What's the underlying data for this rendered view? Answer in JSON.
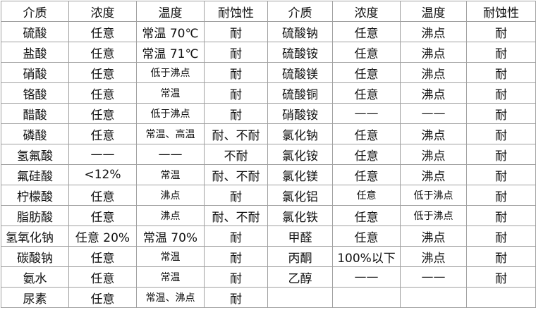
{
  "table": {
    "header": [
      "介质",
      "浓度",
      "温度",
      "耐蚀性",
      "介质",
      "浓度",
      "温度",
      "耐蚀性"
    ],
    "rows": [
      [
        "硫酸",
        "任意",
        "常温 70℃",
        "耐",
        "硫酸钠",
        "任意",
        "沸点",
        "耐"
      ],
      [
        "盐酸",
        "任意",
        "常温 71℃",
        "耐",
        "硫酸铵",
        "任意",
        "沸点",
        "耐"
      ],
      [
        "硝酸",
        "任意",
        "低于沸点",
        "耐",
        "硫酸镁",
        "任意",
        "沸点",
        "耐"
      ],
      [
        "铬酸",
        "任意",
        "常温",
        "耐",
        "硫酸铜",
        "任意",
        "沸点",
        "耐"
      ],
      [
        "醋酸",
        "任意",
        "低于沸点",
        "耐",
        "硝酸铵",
        "——",
        "——",
        "耐"
      ],
      [
        "磷酸",
        "任意",
        "常温、高温",
        "耐、不耐",
        "氯化钠",
        "任意",
        "沸点",
        "耐"
      ],
      [
        "氢氟酸",
        "——",
        "——",
        "不耐",
        "氯化铵",
        "任意",
        "沸点",
        "耐"
      ],
      [
        "氟硅酸",
        "<12%",
        "常温",
        "耐、不耐",
        "氯化镁",
        "任意",
        "沸点",
        "耐"
      ],
      [
        "柠檬酸",
        "任意",
        "沸点",
        "耐",
        "氯化铝",
        "任意",
        "低于沸点",
        "耐"
      ],
      [
        "脂肪酸",
        "任意",
        "沸点",
        "耐、不耐",
        "氯化铁",
        "任意",
        "低于沸点",
        "耐"
      ],
      [
        "氢氧化钠",
        "任意 20%",
        "常温 70%",
        "耐",
        "甲醛",
        "任意",
        "沸点",
        "耐"
      ],
      [
        "碳酸钠",
        "任意",
        "常温",
        "耐",
        "丙酮",
        "100%以下",
        "沸点",
        "耐"
      ],
      [
        "氨水",
        "任意",
        "常温",
        "耐",
        "乙醇",
        "——",
        "——",
        "耐"
      ],
      [
        "尿素",
        "任意",
        "常温、沸点",
        "耐"
      ]
    ]
  }
}
